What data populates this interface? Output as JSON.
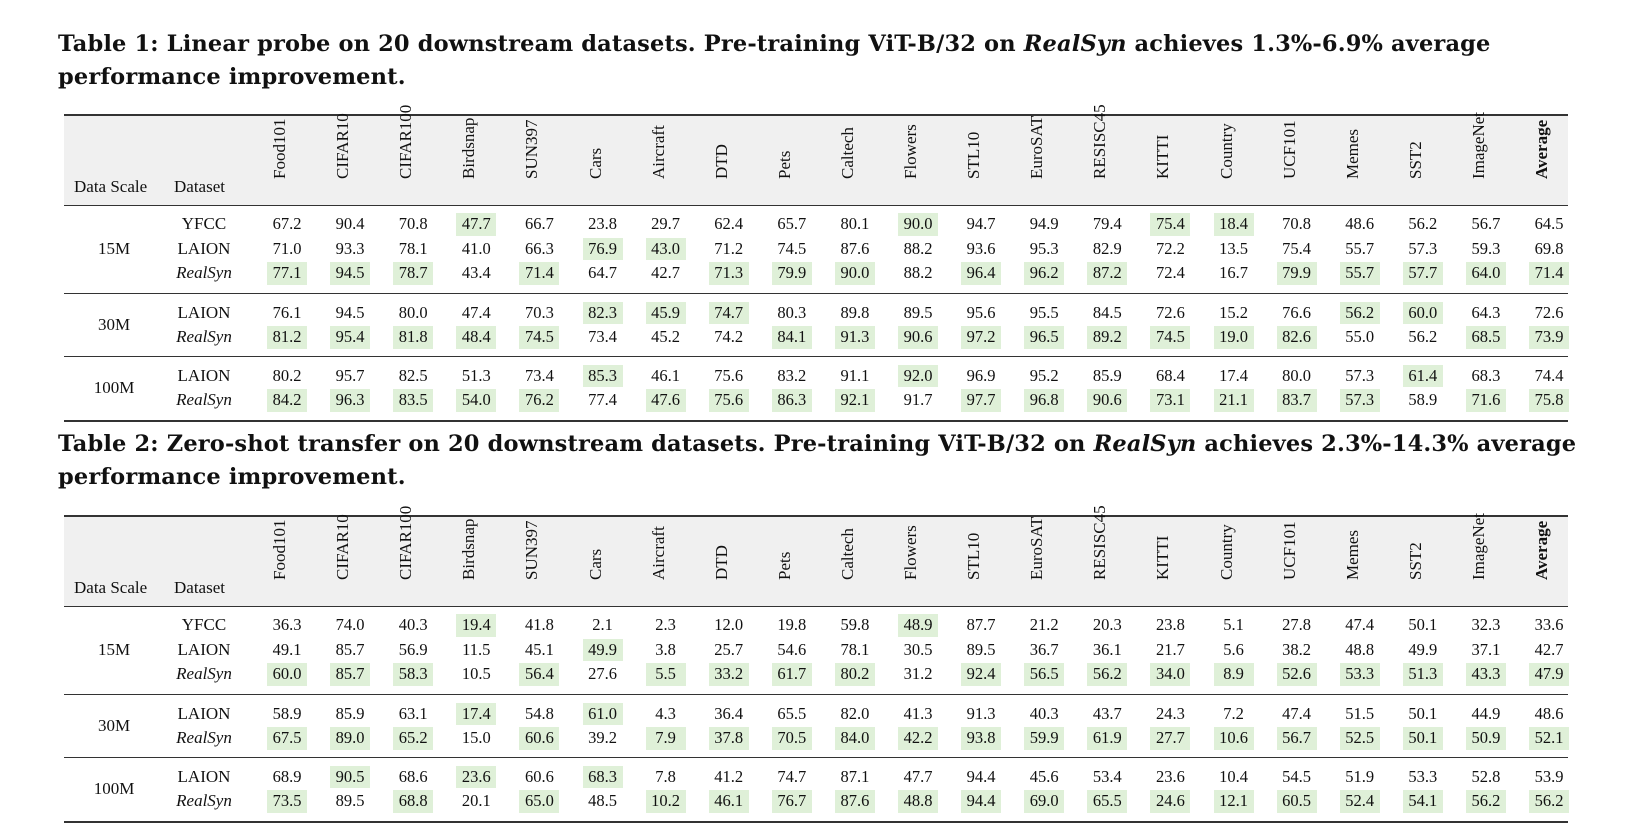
{
  "columns": [
    "Food101",
    "CIFAR10",
    "CIFAR100",
    "Birdsnap",
    "SUN397",
    "Cars",
    "Aircraft",
    "DTD",
    "Pets",
    "Caltech",
    "Flowers",
    "STL10",
    "EuroSAT",
    "RESISC45",
    "KITTI",
    "Country",
    "UCF101",
    "Memes",
    "SST2",
    "ImageNet",
    "Average"
  ],
  "header_left": {
    "scale": "Data Scale",
    "dataset": "Dataset"
  },
  "tables": [
    {
      "caption": {
        "prefix": "Table 1: Linear probe on 20 downstream datasets. Pre-training ViT-B/32 on ",
        "italic": "RealSyn",
        "suffix": " achieves 1.3%-6.9% average performance improvement."
      },
      "groups": [
        {
          "scale": "15M",
          "rows": [
            {
              "dataset": "YFCC",
              "italic": false,
              "values": [
                "67.2",
                "90.4",
                "70.8",
                "47.7",
                "66.7",
                "23.8",
                "29.7",
                "62.4",
                "65.7",
                "80.1",
                "90.0",
                "94.7",
                "94.9",
                "79.4",
                "75.4",
                "18.4",
                "70.8",
                "48.6",
                "56.2",
                "56.7",
                "64.5"
              ],
              "highlight": [
                3,
                10,
                14,
                15
              ]
            },
            {
              "dataset": "LAION",
              "italic": false,
              "values": [
                "71.0",
                "93.3",
                "78.1",
                "41.0",
                "66.3",
                "76.9",
                "43.0",
                "71.2",
                "74.5",
                "87.6",
                "88.2",
                "93.6",
                "95.3",
                "82.9",
                "72.2",
                "13.5",
                "75.4",
                "55.7",
                "57.3",
                "59.3",
                "69.8"
              ],
              "highlight": [
                5,
                6
              ]
            },
            {
              "dataset": "RealSyn",
              "italic": true,
              "values": [
                "77.1",
                "94.5",
                "78.7",
                "43.4",
                "71.4",
                "64.7",
                "42.7",
                "71.3",
                "79.9",
                "90.0",
                "88.2",
                "96.4",
                "96.2",
                "87.2",
                "72.4",
                "16.7",
                "79.9",
                "55.7",
                "57.7",
                "64.0",
                "71.4"
              ],
              "highlight": [
                0,
                1,
                2,
                4,
                7,
                8,
                9,
                11,
                12,
                13,
                16,
                17,
                18,
                19,
                20
              ]
            }
          ]
        },
        {
          "scale": "30M",
          "rows": [
            {
              "dataset": "LAION",
              "italic": false,
              "values": [
                "76.1",
                "94.5",
                "80.0",
                "47.4",
                "70.3",
                "82.3",
                "45.9",
                "74.7",
                "80.3",
                "89.8",
                "89.5",
                "95.6",
                "95.5",
                "84.5",
                "72.6",
                "15.2",
                "76.6",
                "56.2",
                "60.0",
                "64.3",
                "72.6"
              ],
              "highlight": [
                5,
                6,
                7,
                17,
                18
              ]
            },
            {
              "dataset": "RealSyn",
              "italic": true,
              "values": [
                "81.2",
                "95.4",
                "81.8",
                "48.4",
                "74.5",
                "73.4",
                "45.2",
                "74.2",
                "84.1",
                "91.3",
                "90.6",
                "97.2",
                "96.5",
                "89.2",
                "74.5",
                "19.0",
                "82.6",
                "55.0",
                "56.2",
                "68.5",
                "73.9"
              ],
              "highlight": [
                0,
                1,
                2,
                3,
                4,
                8,
                9,
                10,
                11,
                12,
                13,
                14,
                15,
                16,
                19,
                20
              ]
            }
          ]
        },
        {
          "scale": "100M",
          "rows": [
            {
              "dataset": "LAION",
              "italic": false,
              "values": [
                "80.2",
                "95.7",
                "82.5",
                "51.3",
                "73.4",
                "85.3",
                "46.1",
                "75.6",
                "83.2",
                "91.1",
                "92.0",
                "96.9",
                "95.2",
                "85.9",
                "68.4",
                "17.4",
                "80.0",
                "57.3",
                "61.4",
                "68.3",
                "74.4"
              ],
              "highlight": [
                5,
                10,
                18
              ]
            },
            {
              "dataset": "RealSyn",
              "italic": true,
              "values": [
                "84.2",
                "96.3",
                "83.5",
                "54.0",
                "76.2",
                "77.4",
                "47.6",
                "75.6",
                "86.3",
                "92.1",
                "91.7",
                "97.7",
                "96.8",
                "90.6",
                "73.1",
                "21.1",
                "83.7",
                "57.3",
                "58.9",
                "71.6",
                "75.8"
              ],
              "highlight": [
                0,
                1,
                2,
                3,
                4,
                6,
                7,
                8,
                9,
                11,
                12,
                13,
                14,
                15,
                16,
                17,
                19,
                20
              ]
            }
          ]
        }
      ]
    },
    {
      "caption": {
        "prefix": "Table 2: Zero-shot transfer on 20 downstream datasets. Pre-training ViT-B/32 on ",
        "italic": "RealSyn",
        "suffix": " achieves 2.3%-14.3% average performance improvement."
      },
      "groups": [
        {
          "scale": "15M",
          "rows": [
            {
              "dataset": "YFCC",
              "italic": false,
              "values": [
                "36.3",
                "74.0",
                "40.3",
                "19.4",
                "41.8",
                "2.1",
                "2.3",
                "12.0",
                "19.8",
                "59.8",
                "48.9",
                "87.7",
                "21.2",
                "20.3",
                "23.8",
                "5.1",
                "27.8",
                "47.4",
                "50.1",
                "32.3",
                "33.6"
              ],
              "highlight": [
                3,
                10
              ]
            },
            {
              "dataset": "LAION",
              "italic": false,
              "values": [
                "49.1",
                "85.7",
                "56.9",
                "11.5",
                "45.1",
                "49.9",
                "3.8",
                "25.7",
                "54.6",
                "78.1",
                "30.5",
                "89.5",
                "36.7",
                "36.1",
                "21.7",
                "5.6",
                "38.2",
                "48.8",
                "49.9",
                "37.1",
                "42.7"
              ],
              "highlight": [
                5
              ]
            },
            {
              "dataset": "RealSyn",
              "italic": true,
              "values": [
                "60.0",
                "85.7",
                "58.3",
                "10.5",
                "56.4",
                "27.6",
                "5.5",
                "33.2",
                "61.7",
                "80.2",
                "31.2",
                "92.4",
                "56.5",
                "56.2",
                "34.0",
                "8.9",
                "52.6",
                "53.3",
                "51.3",
                "43.3",
                "47.9"
              ],
              "highlight": [
                0,
                1,
                2,
                4,
                6,
                7,
                8,
                9,
                11,
                12,
                13,
                14,
                15,
                16,
                17,
                18,
                19,
                20
              ]
            }
          ]
        },
        {
          "scale": "30M",
          "rows": [
            {
              "dataset": "LAION",
              "italic": false,
              "values": [
                "58.9",
                "85.9",
                "63.1",
                "17.4",
                "54.8",
                "61.0",
                "4.3",
                "36.4",
                "65.5",
                "82.0",
                "41.3",
                "91.3",
                "40.3",
                "43.7",
                "24.3",
                "7.2",
                "47.4",
                "51.5",
                "50.1",
                "44.9",
                "48.6"
              ],
              "highlight": [
                3,
                5
              ]
            },
            {
              "dataset": "RealSyn",
              "italic": true,
              "values": [
                "67.5",
                "89.0",
                "65.2",
                "15.0",
                "60.6",
                "39.2",
                "7.9",
                "37.8",
                "70.5",
                "84.0",
                "42.2",
                "93.8",
                "59.9",
                "61.9",
                "27.7",
                "10.6",
                "56.7",
                "52.5",
                "50.1",
                "50.9",
                "52.1"
              ],
              "highlight": [
                0,
                1,
                2,
                4,
                6,
                7,
                8,
                9,
                10,
                11,
                12,
                13,
                14,
                15,
                16,
                17,
                18,
                19,
                20
              ]
            }
          ]
        },
        {
          "scale": "100M",
          "rows": [
            {
              "dataset": "LAION",
              "italic": false,
              "values": [
                "68.9",
                "90.5",
                "68.6",
                "23.6",
                "60.6",
                "68.3",
                "7.8",
                "41.2",
                "74.7",
                "87.1",
                "47.7",
                "94.4",
                "45.6",
                "53.4",
                "23.6",
                "10.4",
                "54.5",
                "51.9",
                "53.3",
                "52.8",
                "53.9"
              ],
              "highlight": [
                1,
                3,
                5
              ]
            },
            {
              "dataset": "RealSyn",
              "italic": true,
              "values": [
                "73.5",
                "89.5",
                "68.8",
                "20.1",
                "65.0",
                "48.5",
                "10.2",
                "46.1",
                "76.7",
                "87.6",
                "48.8",
                "94.4",
                "69.0",
                "65.5",
                "24.6",
                "12.1",
                "60.5",
                "52.4",
                "54.1",
                "56.2",
                "56.2"
              ],
              "highlight": [
                0,
                2,
                4,
                6,
                7,
                8,
                9,
                10,
                11,
                12,
                13,
                14,
                15,
                16,
                17,
                18,
                19,
                20
              ]
            }
          ]
        }
      ]
    }
  ]
}
